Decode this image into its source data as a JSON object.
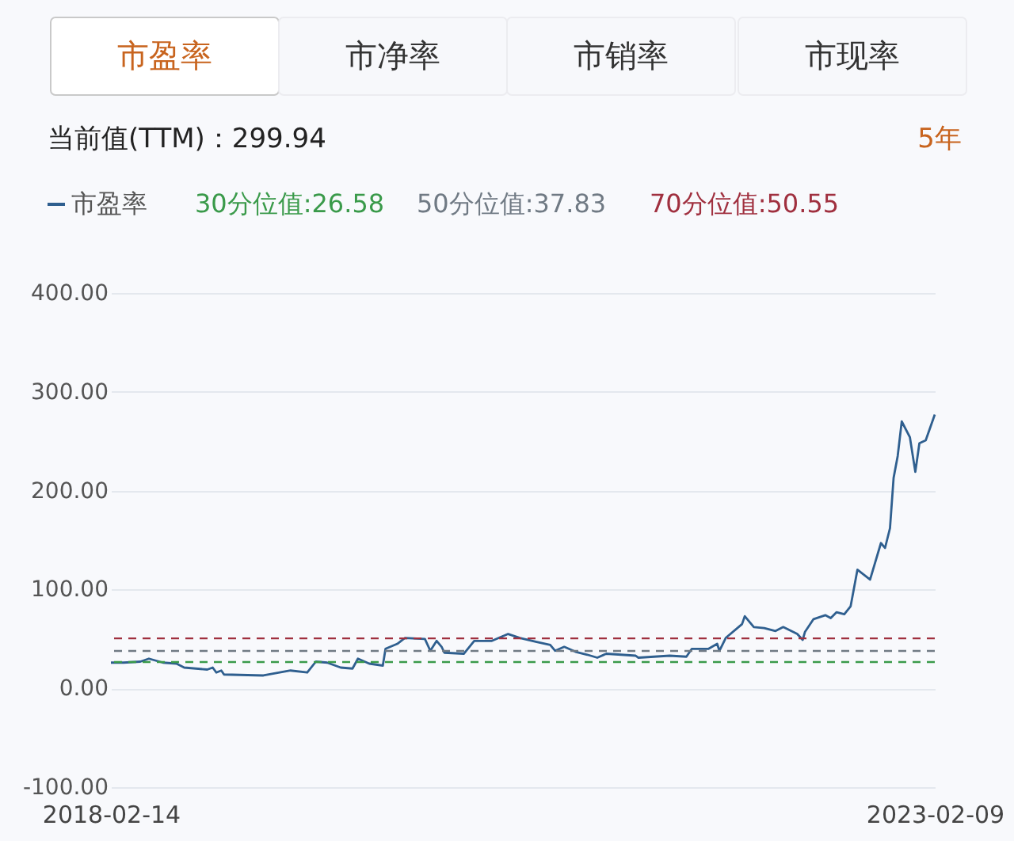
{
  "chart_data": {
    "type": "line",
    "annotations": [
      "市盈率",
      "市净率",
      "市销率",
      "市现率",
      "当前值(TTM)：299.94",
      "5年"
    ],
    "x": [
      "2018-02-14",
      "2018-03-14",
      "2018-04-20",
      "2018-05-09",
      "2018-06-09",
      "2018-07-09",
      "2018-07-26",
      "2018-09-15",
      "2018-09-27",
      "2018-10-05",
      "2018-10-16",
      "2018-10-22",
      "2019-01-17",
      "2019-03-18",
      "2019-04-24",
      "2019-05-13",
      "2019-06-07",
      "2019-07-07",
      "2019-08-02",
      "2019-08-14",
      "2019-09-08",
      "2019-10-08",
      "2019-10-14",
      "2019-11-09",
      "2019-11-26",
      "2020-01-09",
      "2020-01-21",
      "2020-02-04",
      "2020-02-15",
      "2020-02-21",
      "2020-04-04",
      "2020-04-27",
      "2020-06-05",
      "2020-07-11",
      "2020-08-06",
      "2020-09-12",
      "2020-10-12",
      "2020-10-23",
      "2020-11-12",
      "2020-12-07",
      "2021-01-02",
      "2021-01-24",
      "2021-02-13",
      "2021-04-19",
      "2021-04-25",
      "2021-07-03",
      "2021-08-09",
      "2021-08-21",
      "2021-09-27",
      "2021-10-16",
      "2021-10-21",
      "2021-11-04",
      "2021-12-10",
      "2021-12-16",
      "2022-01-05",
      "2022-01-28",
      "2022-02-22",
      "2022-03-11",
      "2022-04-11",
      "2022-04-23",
      "2022-04-28",
      "2022-05-17",
      "2022-06-12",
      "2022-06-24",
      "2022-07-07",
      "2022-07-24",
      "2022-08-07",
      "2022-08-22",
      "2022-09-19",
      "2022-10-13",
      "2022-10-22",
      "2022-11-02",
      "2022-11-10",
      "2022-11-19",
      "2022-11-28",
      "2022-12-16",
      "2022-12-28",
      "2023-01-06",
      "2023-01-20",
      "2023-02-09"
    ],
    "series": [
      {
        "name": "市盈率",
        "color": "#2f5f8f",
        "values": [
          26,
          26,
          27,
          30,
          26,
          25,
          21,
          19,
          21,
          16,
          18,
          14,
          13,
          18,
          16,
          27,
          26,
          21,
          20,
          30,
          25,
          23,
          40,
          45,
          51,
          50,
          38,
          48,
          42,
          36,
          35,
          48,
          48,
          55,
          51,
          47,
          44,
          38,
          42,
          37,
          34,
          31,
          35,
          33,
          31,
          33,
          32,
          40,
          40,
          45,
          38,
          51,
          65,
          73,
          62,
          61,
          58,
          62,
          55,
          49,
          57,
          70,
          74,
          71,
          77,
          75,
          83,
          120,
          110,
          147,
          142,
          162,
          213,
          235,
          270,
          254,
          219,
          248,
          251,
          277
        ]
      }
    ],
    "xlim": [
      "2018-02-14",
      "2023-02-09"
    ],
    "xticks": [
      "2018-02-14",
      "2023-02-09"
    ],
    "ylim": [
      -100,
      400
    ],
    "yticks": [
      {
        "value": -100,
        "label": "-100.00"
      },
      {
        "value": 0,
        "label": "0.00"
      },
      {
        "value": 100,
        "label": "100.00"
      },
      {
        "value": 200,
        "label": "200.00"
      },
      {
        "value": 300,
        "label": "300.00"
      },
      {
        "value": 400,
        "label": "400.00"
      }
    ],
    "ref_lines": [
      {
        "axis": "y",
        "value": 26.58,
        "label": "30分位值:26.58",
        "color": "#3a9a4a",
        "line_style": "dashed"
      },
      {
        "axis": "y",
        "value": 37.83,
        "label": "50分位值:37.83",
        "color": "#707a84",
        "line_style": "dashed"
      },
      {
        "axis": "y",
        "value": 50.55,
        "label": "70分位值:50.55",
        "color": "#a0303f",
        "line_style": "dashed"
      }
    ],
    "grid": "y",
    "legend": "top left",
    "marker": "none",
    "line_style": "solid"
  }
}
